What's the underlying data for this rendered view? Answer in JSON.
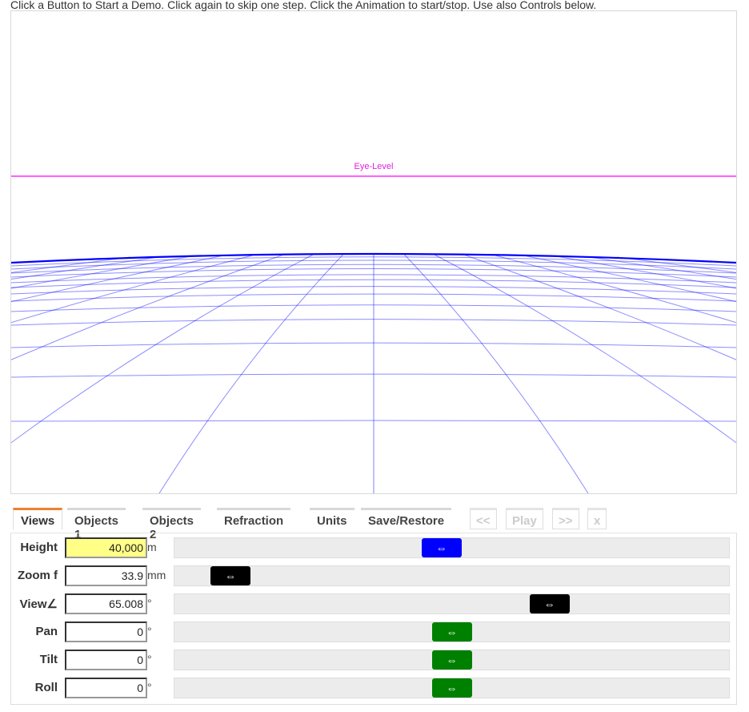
{
  "intro": "Click a Button to Start a Demo. Click again to skip one step. Click the Animation to start/stop. Use also Controls below.",
  "canvas": {
    "eye_level_label": "Eye-Level",
    "eye_level_color": "#ff00ff",
    "grid_color": "#0000ff"
  },
  "tabs": [
    {
      "label": "Views",
      "active": true
    },
    {
      "label": "Objects 1"
    },
    {
      "label": "Objects 2"
    },
    {
      "label": "Refraction"
    },
    {
      "label": "Units"
    },
    {
      "label": "Save/Restore"
    }
  ],
  "playback": [
    {
      "label": "<<"
    },
    {
      "label": "Play"
    },
    {
      "label": ">>"
    },
    {
      "label": "x"
    }
  ],
  "thumb_glyph": "⇔",
  "controls": [
    {
      "label": "Height",
      "value": "40,000",
      "unit": "m",
      "slider": 0.48,
      "thumb_color": "#0000ff",
      "highlight": "#ffff88"
    },
    {
      "label": "Zoom f",
      "value": "33.9",
      "unit": "mm",
      "slider": 0.07,
      "thumb_color": "#000000"
    },
    {
      "label": "View∠",
      "value": "65.008",
      "unit": "°",
      "slider": 0.69,
      "thumb_color": "#000000"
    },
    {
      "label": "Pan",
      "value": "0",
      "unit": "°",
      "slider": 0.5,
      "thumb_color": "#008000"
    },
    {
      "label": "Tilt",
      "value": "0",
      "unit": "°",
      "slider": 0.5,
      "thumb_color": "#008000"
    },
    {
      "label": "Roll",
      "value": "0",
      "unit": "°",
      "slider": 0.5,
      "thumb_color": "#008000"
    }
  ]
}
